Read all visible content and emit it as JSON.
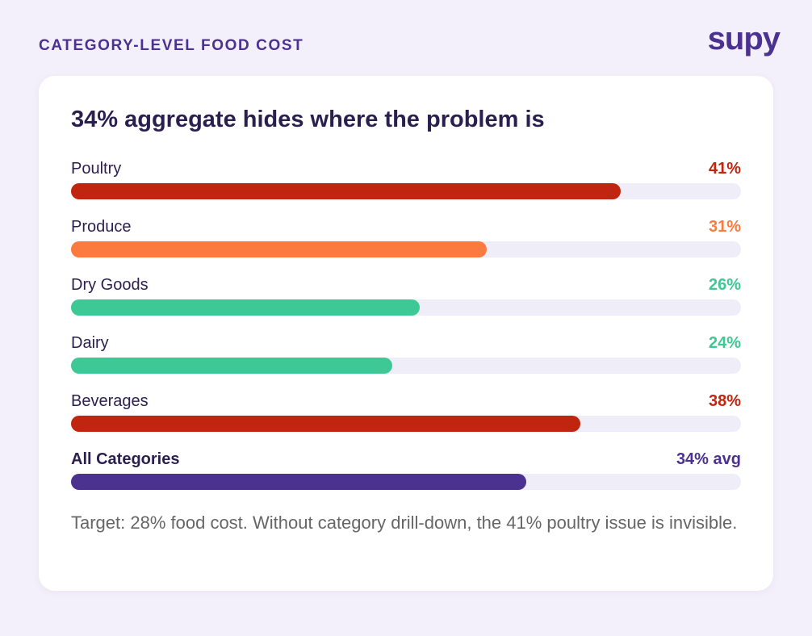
{
  "header": {
    "label": "CATEGORY-LEVEL FOOD COST",
    "logo": "supy"
  },
  "chart_data": {
    "type": "bar",
    "orientation": "horizontal",
    "title": "34% aggregate hides where the problem is",
    "categories": [
      "Poultry",
      "Produce",
      "Dry Goods",
      "Dairy",
      "Beverages"
    ],
    "values": [
      41,
      31,
      26,
      24,
      38
    ],
    "value_labels": [
      "41%",
      "31%",
      "26%",
      "24%",
      "38%"
    ],
    "colors": [
      "#c0260f",
      "#fb7a3e",
      "#3ec896",
      "#3ec896",
      "#c0260f"
    ],
    "total": {
      "name": "All Categories",
      "value": 34,
      "value_label": "34% avg",
      "color": "#4b3190"
    },
    "xlim": [
      0,
      50
    ]
  },
  "footnote": "Target: 28% food cost. Without category drill-down, the 41% poultry issue is invisible."
}
